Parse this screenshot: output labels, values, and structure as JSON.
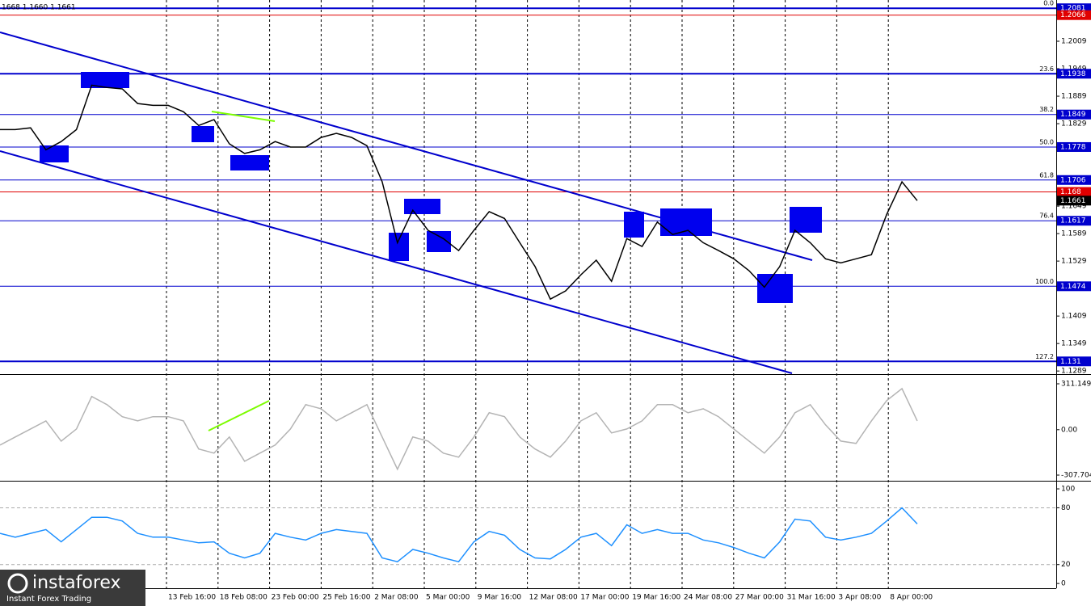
{
  "header": "1668 1.1660 1.1661",
  "logo": {
    "name": "instaforex",
    "tagline": "Instant Forex Trading"
  },
  "x_labels": [
    "13 Feb 16:00",
    "18 Feb 08:00",
    "23 Feb 00:00",
    "25 Feb 16:00",
    "2 Mar 08:00",
    "5 Mar 00:00",
    "9 Mar 16:00",
    "12 Mar 08:00",
    "17 Mar 00:00",
    "19 Mar 16:00",
    "24 Mar 08:00",
    "27 Mar 00:00",
    "31 Mar 16:00",
    "3 Apr 08:00",
    "8 Apr 00:00"
  ],
  "chart_data": [
    {
      "type": "line",
      "color": "#000000",
      "values": [
        1.1816,
        1.1816,
        1.182,
        1.1772,
        1.179,
        1.1816,
        1.1913,
        1.1908,
        1.1905,
        1.1873,
        1.1869,
        1.1869,
        1.1855,
        1.1825,
        1.1838,
        1.1785,
        1.1764,
        1.1772,
        1.179,
        1.1778,
        1.1778,
        1.1799,
        1.1808,
        1.1799,
        1.1781,
        1.1702,
        1.1569,
        1.164,
        1.1596,
        1.1578,
        1.1552,
        1.1596,
        1.1637,
        1.1622,
        1.1569,
        1.1517,
        1.1446,
        1.1464,
        1.1499,
        1.1531,
        1.1485,
        1.1578,
        1.1561,
        1.1614,
        1.1587,
        1.1596,
        1.1569,
        1.1552,
        1.1534,
        1.1508,
        1.1472,
        1.1517,
        1.1596,
        1.1569,
        1.1534,
        1.1525,
        1.1534,
        1.1543,
        1.1631,
        1.1702,
        1.1661
      ],
      "ylim": [
        1.1284,
        1.2099
      ],
      "yticks": [
        1.2009,
        1.1949,
        1.1889,
        1.1829,
        1.1649,
        1.1589,
        1.1529,
        1.1409,
        1.1349,
        1.1289
      ],
      "levels": [
        {
          "name": "0.0",
          "value": 1.2081
        },
        {
          "name": "23.6",
          "value": 1.1938
        },
        {
          "name": "38.2",
          "value": 1.1849
        },
        {
          "name": "50.0",
          "value": 1.1778
        },
        {
          "name": "61.8",
          "value": 1.1706
        },
        {
          "name": "76.4",
          "value": 1.1617
        },
        {
          "name": "100.0",
          "value": 1.1474
        },
        {
          "name": "127.2",
          "value": 1.131
        }
      ],
      "level_color": "#0000cd",
      "price_lines": [
        1.2066,
        1.168
      ],
      "price_line_color": "#e00000",
      "last_price": 1.1661
    },
    {
      "type": "line",
      "color": "#b4b4b4",
      "values": [
        -104,
        -49,
        5,
        60,
        -77,
        5,
        225,
        170,
        88,
        60,
        88,
        88,
        60,
        -131,
        -159,
        -49,
        -214,
        -159,
        -104,
        5,
        170,
        142,
        60,
        115,
        170,
        -49,
        -268,
        -49,
        -77,
        -159,
        -186,
        -49,
        115,
        88,
        -49,
        -131,
        -186,
        -77,
        60,
        115,
        -22,
        5,
        60,
        170,
        170,
        115,
        142,
        88,
        5,
        -77,
        -159,
        -49,
        115,
        170,
        33,
        -77,
        -93,
        60,
        197,
        279,
        60
      ],
      "ylim": [
        -340.6,
        360.4
      ],
      "yticks": [
        311.1497,
        {
          "value": 0,
          "label": "0.00"
        },
        -307.704
      ]
    },
    {
      "type": "line",
      "color": "#1e90ff",
      "values": [
        53,
        49,
        53,
        57,
        44,
        57,
        70,
        70,
        66,
        53,
        49,
        49,
        46,
        43,
        44,
        32,
        27,
        32,
        53,
        49,
        46,
        53,
        57,
        55,
        53,
        27,
        23,
        36,
        32,
        27,
        23,
        44,
        55,
        51,
        36,
        27,
        26,
        36,
        49,
        53,
        40,
        62,
        53,
        57,
        53,
        53,
        46,
        43,
        38,
        32,
        27,
        44,
        68,
        66,
        49,
        46,
        49,
        53,
        66,
        80,
        63
      ],
      "ylim": [
        -5,
        106
      ],
      "yticks": [
        100,
        80,
        20,
        0
      ],
      "levels": [
        80,
        20
      ]
    }
  ]
}
